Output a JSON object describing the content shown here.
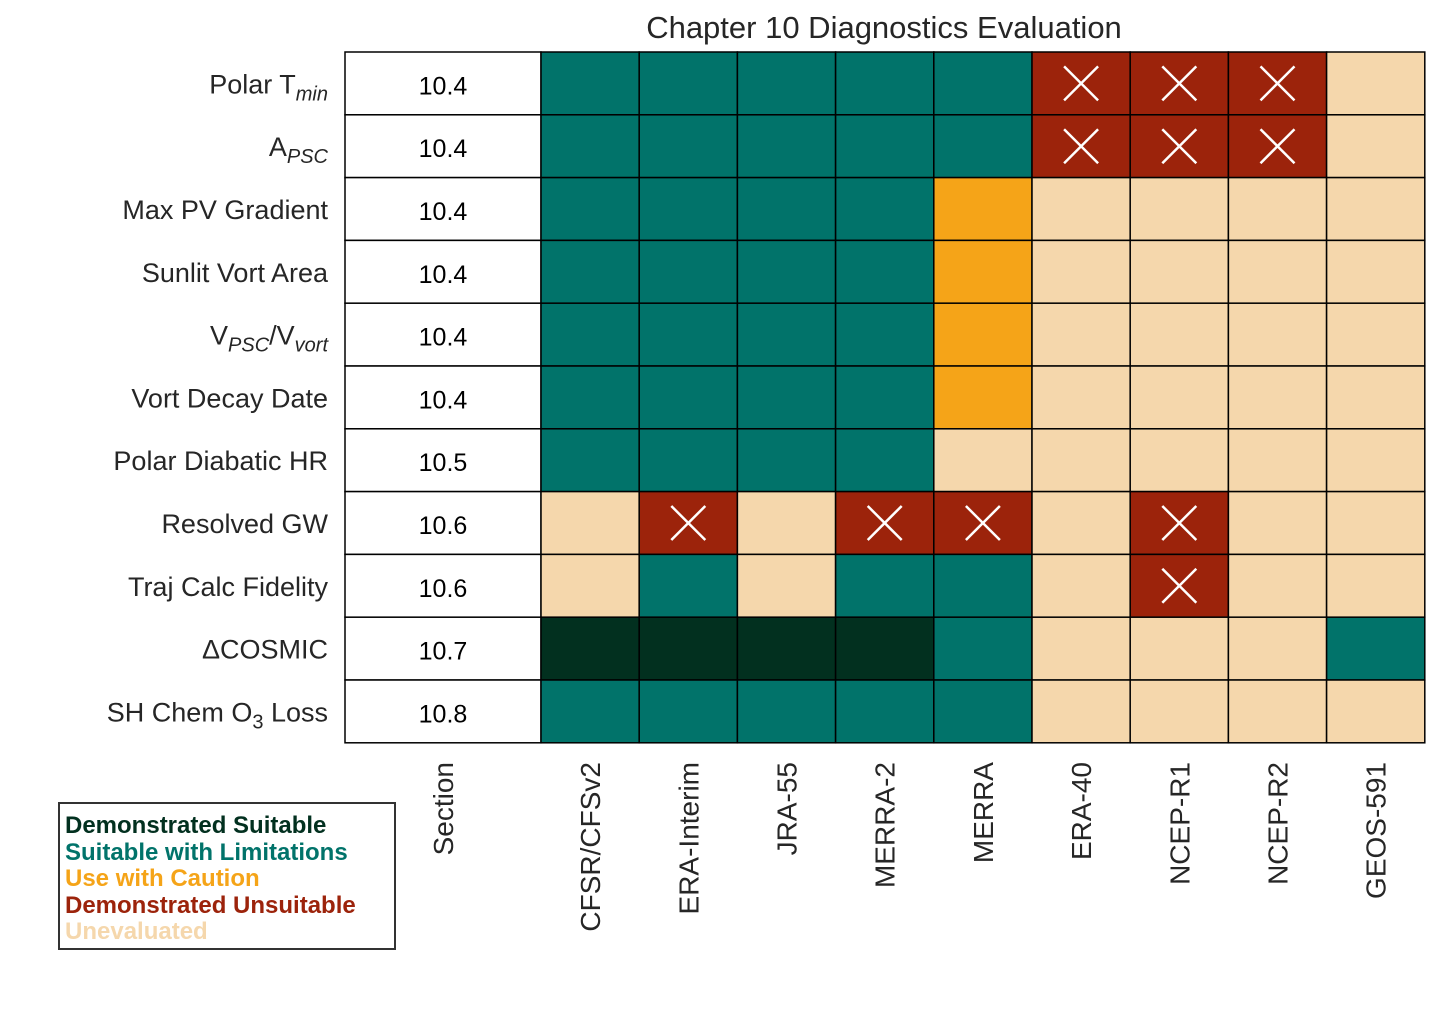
{
  "colors": {
    "demonstrated_suitable": "#02301f",
    "suitable_with_limitations": "#01736a",
    "use_with_caution": "#f5a418",
    "demonstrated_unsuitable": "#9c230b",
    "unevaluated": "#f5d7ac"
  },
  "chart_data": {
    "type": "table",
    "title": "Chapter 10 Diagnostics Evaluation",
    "section_header": "Section",
    "columns": [
      "CFSR/CFSv2",
      "ERA-Interim",
      "JRA-55",
      "MERRA-2",
      "MERRA",
      "ERA-40",
      "NCEP-R1",
      "NCEP-R2",
      "GEOS-591"
    ],
    "rows": [
      {
        "main": "Polar T",
        "sub": "min",
        "sub_type": "sub",
        "suffix": "",
        "section": "10.4",
        "ratings": [
          "suitable_with_limitations",
          "suitable_with_limitations",
          "suitable_with_limitations",
          "suitable_with_limitations",
          "suitable_with_limitations",
          "demonstrated_unsuitable",
          "demonstrated_unsuitable",
          "demonstrated_unsuitable",
          "unevaluated"
        ]
      },
      {
        "main": "A",
        "sub": "PSC",
        "sub_type": "sub",
        "suffix": "",
        "section": "10.4",
        "ratings": [
          "suitable_with_limitations",
          "suitable_with_limitations",
          "suitable_with_limitations",
          "suitable_with_limitations",
          "suitable_with_limitations",
          "demonstrated_unsuitable",
          "demonstrated_unsuitable",
          "demonstrated_unsuitable",
          "unevaluated"
        ]
      },
      {
        "main": "Max PV Gradient",
        "sub": "",
        "sub_type": "",
        "suffix": "",
        "section": "10.4",
        "ratings": [
          "suitable_with_limitations",
          "suitable_with_limitations",
          "suitable_with_limitations",
          "suitable_with_limitations",
          "use_with_caution",
          "unevaluated",
          "unevaluated",
          "unevaluated",
          "unevaluated"
        ]
      },
      {
        "main": "Sunlit Vort Area",
        "sub": "",
        "sub_type": "",
        "suffix": "",
        "section": "10.4",
        "ratings": [
          "suitable_with_limitations",
          "suitable_with_limitations",
          "suitable_with_limitations",
          "suitable_with_limitations",
          "use_with_caution",
          "unevaluated",
          "unevaluated",
          "unevaluated",
          "unevaluated"
        ]
      },
      {
        "main": "V",
        "sub": "PSC",
        "sub_type": "ratio",
        "mid": "/V",
        "sub2": "vort",
        "suffix": "",
        "section": "10.4",
        "ratings": [
          "suitable_with_limitations",
          "suitable_with_limitations",
          "suitable_with_limitations",
          "suitable_with_limitations",
          "use_with_caution",
          "unevaluated",
          "unevaluated",
          "unevaluated",
          "unevaluated"
        ]
      },
      {
        "main": "Vort Decay Date",
        "sub": "",
        "sub_type": "",
        "suffix": "",
        "section": "10.4",
        "ratings": [
          "suitable_with_limitations",
          "suitable_with_limitations",
          "suitable_with_limitations",
          "suitable_with_limitations",
          "use_with_caution",
          "unevaluated",
          "unevaluated",
          "unevaluated",
          "unevaluated"
        ]
      },
      {
        "main": "Polar Diabatic HR",
        "sub": "",
        "sub_type": "",
        "suffix": "",
        "section": "10.5",
        "ratings": [
          "suitable_with_limitations",
          "suitable_with_limitations",
          "suitable_with_limitations",
          "suitable_with_limitations",
          "unevaluated",
          "unevaluated",
          "unevaluated",
          "unevaluated",
          "unevaluated"
        ]
      },
      {
        "main": "Resolved GW",
        "sub": "",
        "sub_type": "",
        "suffix": "",
        "section": "10.6",
        "ratings": [
          "unevaluated",
          "demonstrated_unsuitable",
          "unevaluated",
          "demonstrated_unsuitable",
          "demonstrated_unsuitable",
          "unevaluated",
          "demonstrated_unsuitable",
          "unevaluated",
          "unevaluated"
        ]
      },
      {
        "main": "Traj Calc Fidelity",
        "sub": "",
        "sub_type": "",
        "suffix": "",
        "section": "10.6",
        "ratings": [
          "unevaluated",
          "suitable_with_limitations",
          "unevaluated",
          "suitable_with_limitations",
          "suitable_with_limitations",
          "unevaluated",
          "demonstrated_unsuitable",
          "unevaluated",
          "unevaluated"
        ]
      },
      {
        "main": "ΔCOSMIC",
        "sub": "",
        "sub_type": "",
        "suffix": "",
        "section": "10.7",
        "ratings": [
          "demonstrated_suitable",
          "demonstrated_suitable",
          "demonstrated_suitable",
          "demonstrated_suitable",
          "suitable_with_limitations",
          "unevaluated",
          "unevaluated",
          "unevaluated",
          "suitable_with_limitations"
        ]
      },
      {
        "main": "SH Chem O",
        "sub": "3",
        "sub_type": "sub",
        "suffix": " Loss",
        "section": "10.8",
        "ratings": [
          "suitable_with_limitations",
          "suitable_with_limitations",
          "suitable_with_limitations",
          "suitable_with_limitations",
          "suitable_with_limitations",
          "unevaluated",
          "unevaluated",
          "unevaluated",
          "unevaluated"
        ]
      }
    ],
    "legend": [
      {
        "key": "demonstrated_suitable",
        "label": "Demonstrated Suitable"
      },
      {
        "key": "suitable_with_limitations",
        "label": "Suitable with Limitations"
      },
      {
        "key": "use_with_caution",
        "label": "Use with Caution"
      },
      {
        "key": "demonstrated_unsuitable",
        "label": "Demonstrated Unsuitable"
      },
      {
        "key": "unevaluated",
        "label": "Unevaluated"
      }
    ],
    "legend_placement": "bottom-left"
  }
}
